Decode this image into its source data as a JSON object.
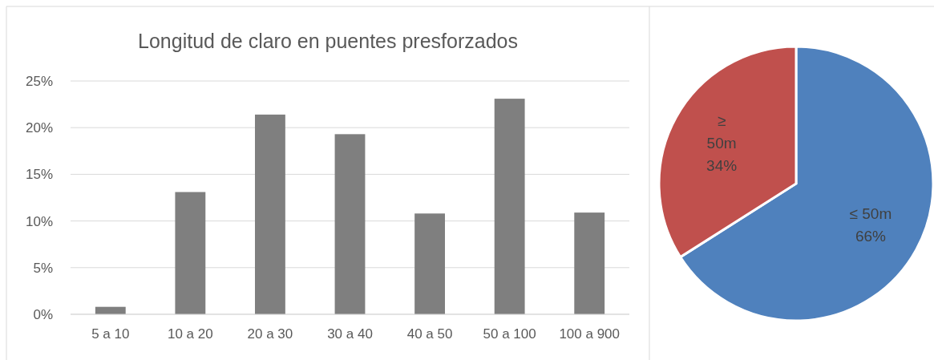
{
  "chart_data": [
    {
      "type": "bar",
      "title": "Longitud de claro en puentes presforzados",
      "categories": [
        "5 a 10",
        "10 a 20",
        "20 a 30",
        "30 a 40",
        "40 a 50",
        "50 a 100",
        "100 a 900"
      ],
      "values": [
        0.8,
        13.1,
        21.4,
        19.3,
        10.8,
        23.1,
        10.9
      ],
      "color": "#7f7f7f",
      "ylim": [
        0,
        25
      ],
      "yticks": [
        {
          "value": 0,
          "label": "0%"
        },
        {
          "value": 5,
          "label": "5%"
        },
        {
          "value": 10,
          "label": "10%"
        },
        {
          "value": 15,
          "label": "15%"
        },
        {
          "value": 20,
          "label": "20%"
        },
        {
          "value": 25,
          "label": "25%"
        }
      ],
      "grid": "y"
    },
    {
      "type": "pie",
      "categories": [
        "≤ 50m",
        "≥ 50m"
      ],
      "values": [
        66,
        34
      ],
      "colors": [
        "#4f81bd",
        "#c0504d"
      ],
      "value_labels": [
        "66%",
        "34%"
      ]
    }
  ]
}
